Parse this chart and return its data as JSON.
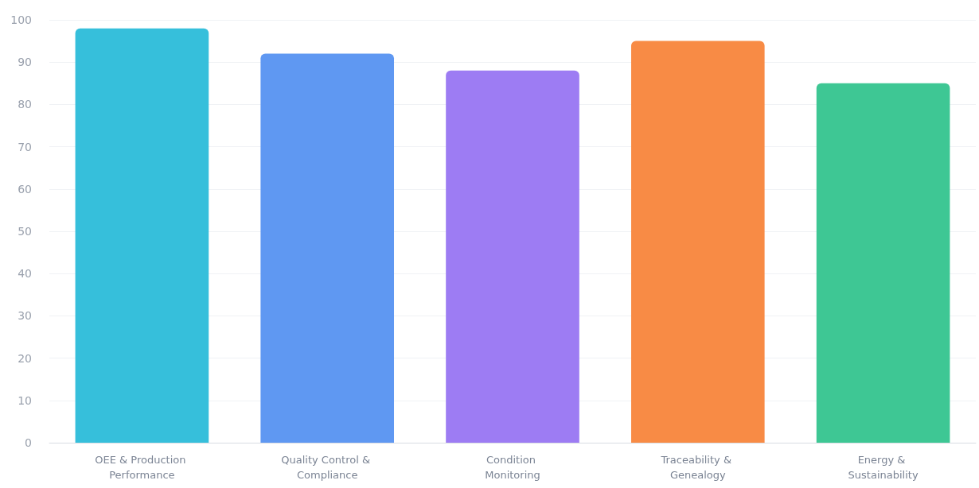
{
  "chart_data": {
    "type": "bar",
    "categories": [
      "OEE & Production Performance",
      "Quality Control & Compliance",
      "Condition Monitoring",
      "Traceability & Genealogy",
      "Energy & Sustainability"
    ],
    "values": [
      98,
      92,
      88,
      95,
      85
    ],
    "colors": [
      "#36bfdb",
      "#5f98f2",
      "#9d7cf3",
      "#f88b45",
      "#3ec794"
    ],
    "ylim": [
      0,
      100
    ],
    "yticks": [
      0,
      10,
      20,
      30,
      40,
      50,
      60,
      70,
      80,
      90,
      100
    ],
    "grid": "y"
  }
}
